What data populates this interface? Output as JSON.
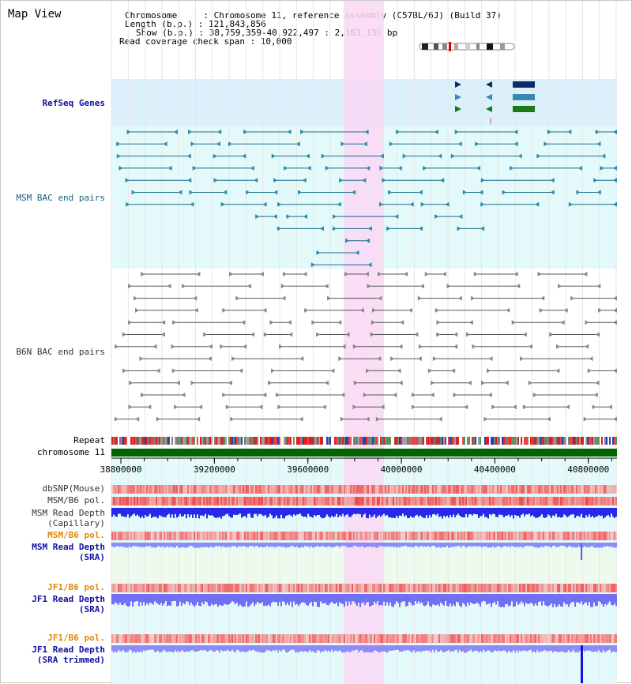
{
  "title": "Map View",
  "info": {
    "chromosome": "Chromosome     : Chromosome 11, reference assembly (C57BL/6J) (Build 37)",
    "length": "Length (b.p.) : 121,843,856",
    "show": "Show (b.p.) : 38,759,359-40,922,497 : 2,163,139 bp",
    "coverage": "Read coverage check span : 10,000"
  },
  "tracks": {
    "refseq": "RefSeq Genes",
    "msm_bac": "MSM BAC end pairs",
    "b6n_bac": "B6N BAC end pairs",
    "repeat": "Repeat",
    "chromosome": "chromosome 11",
    "dbsnp": "dbSNP(Mouse)",
    "msm_b6_pol_1": "MSM/B6 pol.",
    "msm_read_cap_1": "MSM Read Depth",
    "msm_read_cap_2": "(Capillary)",
    "msm_b6_pol_2": "MSM/B6 pol.",
    "msm_read_sra_1": "MSM Read Depth",
    "msm_read_sra_2": "(SRA)",
    "jf1_b6_pol_1": "JF1/B6 pol.",
    "jf1_read_sra_1": "JF1 Read Depth",
    "jf1_read_sra_2": "(SRA)",
    "jf1_b6_pol_2": "JF1/B6 pol.",
    "jf1_read_trim_1": "JF1 Read Depth",
    "jf1_read_trim_2": "(SRA trimmed)"
  },
  "axis": {
    "ticks": [
      "38800000",
      "39200000",
      "39600000",
      "40000000",
      "40400000",
      "40800000"
    ]
  },
  "colors": {
    "refseq_bg": "#dcf0fc",
    "msm_bg": "#e4fafa",
    "highlight": "#fad7f5",
    "chrom_bar": "#006400",
    "depth_blue": "#2020e0",
    "depth_light": "#8080f8",
    "pol_red": "#f07070"
  }
}
